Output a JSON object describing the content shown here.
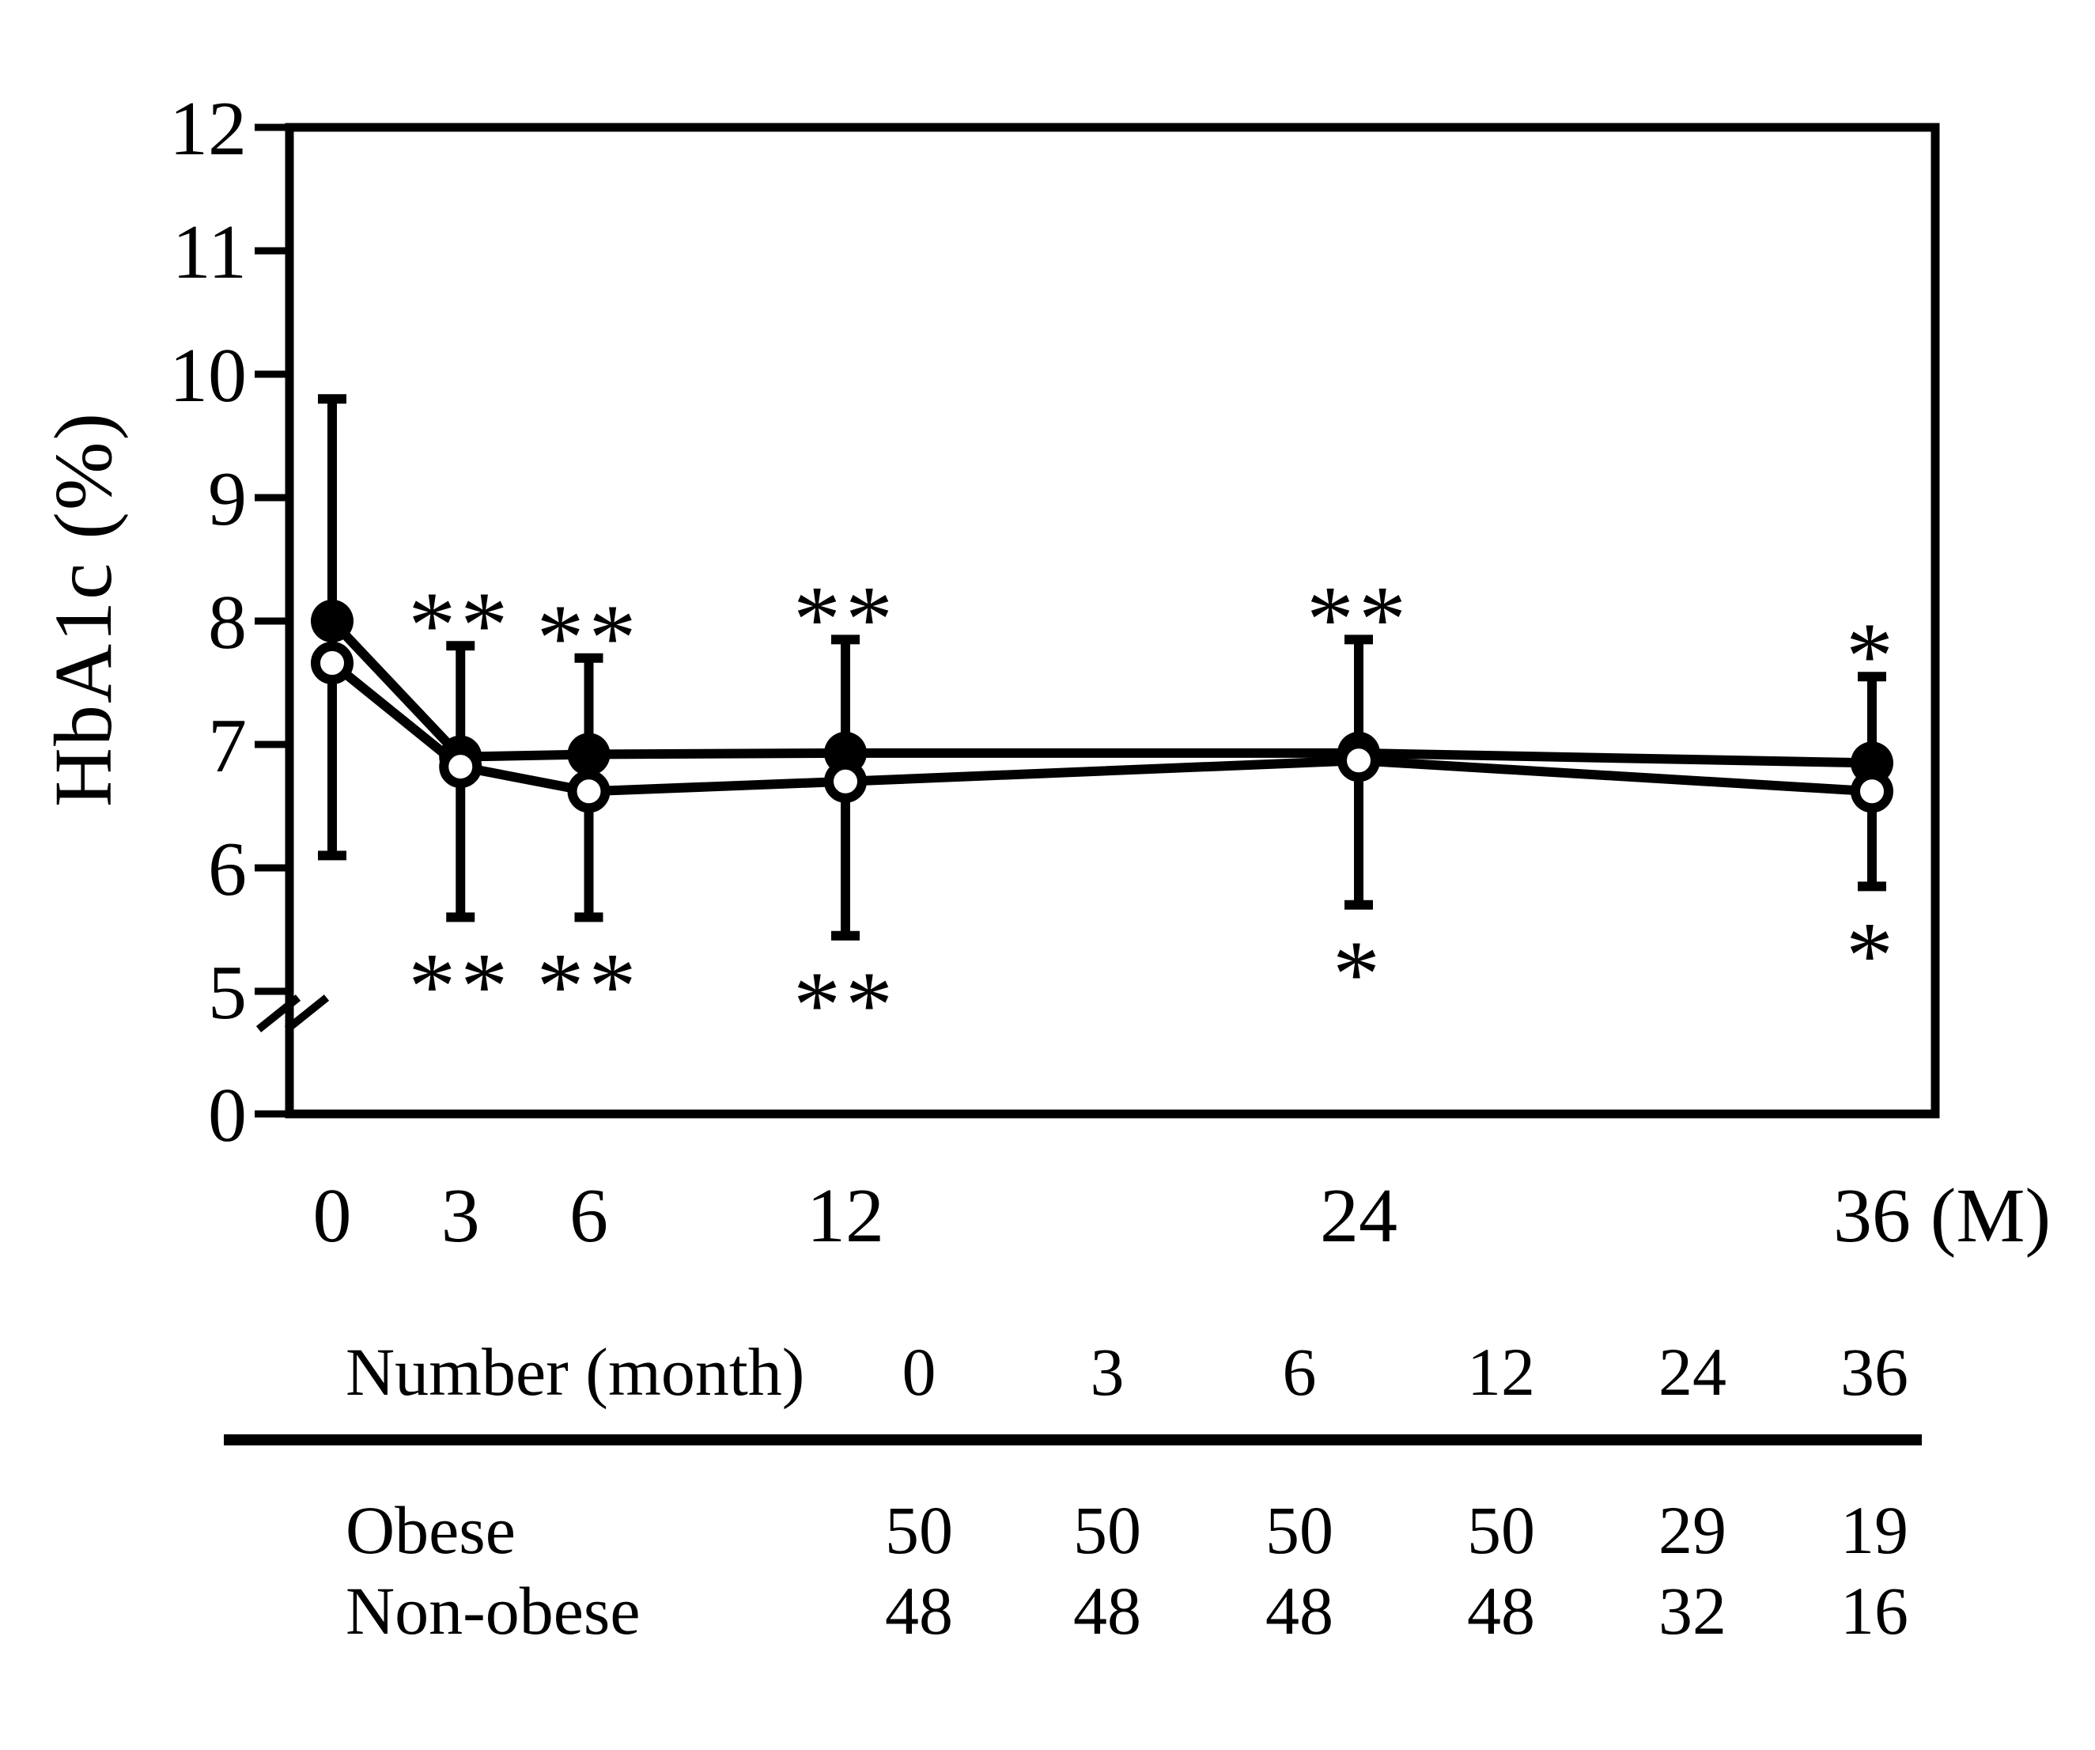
{
  "figure": {
    "background": "#ffffff",
    "ink": "#000000"
  },
  "chart_data": {
    "type": "line",
    "title": "",
    "ylabel": "HbA1c (%)",
    "x_unit_suffix": "(M)",
    "x": [
      0,
      3,
      6,
      12,
      24,
      36
    ],
    "x_tick_labels": [
      "0",
      "3",
      "6",
      "12",
      "24",
      "36"
    ],
    "y_axis": {
      "label": "HbA1c (%)",
      "ticks": [
        "12",
        "11",
        "10",
        "9",
        "8",
        "7",
        "6",
        "5",
        "0"
      ],
      "axis_break_between": [
        "0",
        "5"
      ],
      "ylim_visible": [
        5,
        12
      ],
      "grid": false,
      "legend_position": "none"
    },
    "series": [
      {
        "name": "Obese",
        "marker": "filled-circle",
        "values": [
          8.0,
          6.9,
          6.92,
          6.93,
          6.93,
          6.85
        ]
      },
      {
        "name": "Non-obese",
        "marker": "open-circle",
        "values": [
          7.66,
          6.82,
          6.62,
          6.7,
          6.87,
          6.62
        ]
      }
    ],
    "error_bars": [
      {
        "month": 0,
        "low": 6.1,
        "high": 9.8
      },
      {
        "month": 3,
        "low": 5.6,
        "high": 7.8
      },
      {
        "month": 6,
        "low": 5.6,
        "high": 7.7
      },
      {
        "month": 12,
        "low": 5.45,
        "high": 7.85
      },
      {
        "month": 24,
        "low": 5.7,
        "high": 7.85
      },
      {
        "month": 36,
        "low": 5.85,
        "high": 7.55
      }
    ],
    "significance_above": [
      "",
      "**",
      "**",
      "**",
      "**",
      "*"
    ],
    "significance_below": [
      "",
      "**",
      "**",
      "**",
      "*",
      "*"
    ]
  },
  "table": {
    "header_label": "Number (month)",
    "columns": [
      "0",
      "3",
      "6",
      "12",
      "24",
      "36"
    ],
    "rows": [
      {
        "label": "Obese",
        "values": [
          "50",
          "50",
          "50",
          "50",
          "29",
          "19"
        ]
      },
      {
        "label": "Non-obese",
        "values": [
          "48",
          "48",
          "48",
          "48",
          "32",
          "16"
        ]
      }
    ]
  }
}
